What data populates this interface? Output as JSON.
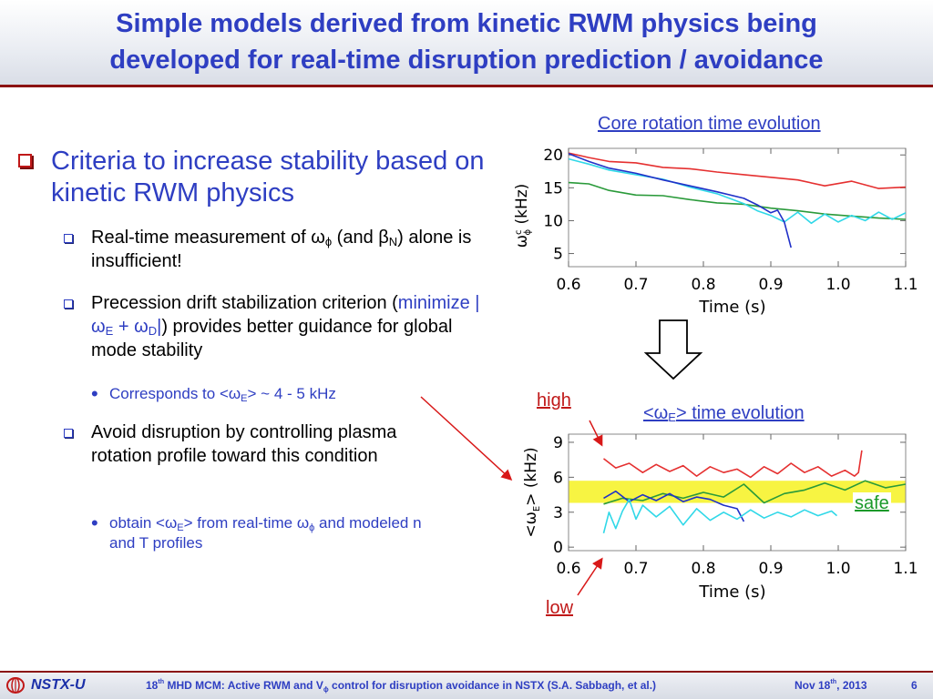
{
  "slide": {
    "title_line1": "Simple models derived from kinetic RWM physics being",
    "title_line2": "developed for real-time disruption prediction / avoidance",
    "page_number": "6"
  },
  "bullets": {
    "main": "Criteria to increase stability based on kinetic RWM physics",
    "sub1_a": "Real-time measurement of ",
    "omega": "ω",
    "phi": "ϕ",
    "sub1_b": " (and ",
    "beta": "β",
    "N": "N",
    "sub1_c": ") alone is insufficient!",
    "sub2_a": "Precession drift stabilization criterion (",
    "sub2_minimize": "minimize |ω",
    "E": "E",
    "plus_omega": " + ω",
    "D": "D",
    "bar": "|",
    "sub2_b": ") provides better guidance for global mode stability",
    "sub2_1_a": "Corresponds to <ω",
    "sub2_1_b": "> ~ 4 - 5 kHz",
    "sub3": "Avoid disruption by controlling plasma rotation profile toward this condition",
    "sub3_1_a": "obtain <ω",
    "sub3_1_b": "> from real-time ",
    "sub3_1_c": " and modeled n and T profiles"
  },
  "labels": {
    "core_caption": "Core rotation time evolution",
    "we_caption_a": "<ω",
    "we_caption_b": "> time evolution",
    "high": "high",
    "low": "low",
    "safe": "safe"
  },
  "footer": {
    "logo": "NSTX-U",
    "text_a": "18",
    "text_th": "th",
    "text_b": " MHD MCM: Active RWM and V",
    "text_c": " control for disruption avoidance in NSTX (S.A. Sabbagh, et al.)",
    "date_a": "Nov 18",
    "date_th": "th",
    "date_b": ", 2013"
  },
  "chart_data": [
    {
      "type": "line",
      "title": "Core rotation time evolution",
      "xlabel": "Time (s)",
      "ylabel": "ω",
      "ylabel_sup": "c",
      "ylabel_sub": "ϕ",
      "ylabel_unit": " (kHz)",
      "xlim": [
        0.6,
        1.1
      ],
      "ylim": [
        3,
        21
      ],
      "xticks": [
        "0.6",
        "0.7",
        "0.8",
        "0.9",
        "1.0",
        "1.1"
      ],
      "yticks": [
        "5",
        "10",
        "15",
        "20"
      ],
      "xtick_values": [
        0.6,
        0.7,
        0.8,
        0.9,
        1.0,
        1.1
      ],
      "ytick_values": [
        5,
        10,
        15,
        20
      ],
      "series": [
        {
          "color": "#e53030",
          "x": [
            0.6,
            0.63,
            0.66,
            0.7,
            0.74,
            0.78,
            0.82,
            0.86,
            0.9,
            0.94,
            0.98,
            1.02,
            1.06,
            1.1
          ],
          "y": [
            20.3,
            19.6,
            19.0,
            18.8,
            18.1,
            17.9,
            17.4,
            17.0,
            16.6,
            16.2,
            15.3,
            16.0,
            14.9,
            15.1
          ]
        },
        {
          "color": "#2a9a3a",
          "x": [
            0.6,
            0.63,
            0.66,
            0.7,
            0.74,
            0.78,
            0.82,
            0.86,
            0.9,
            0.94,
            0.98,
            1.02,
            1.06,
            1.1
          ],
          "y": [
            15.8,
            15.6,
            14.6,
            13.9,
            13.8,
            13.2,
            12.7,
            12.5,
            11.9,
            11.5,
            11.0,
            10.7,
            10.4,
            10.2
          ]
        },
        {
          "color": "#30d8e8",
          "x": [
            0.6,
            0.63,
            0.66,
            0.7,
            0.74,
            0.78,
            0.82,
            0.86,
            0.88,
            0.9,
            0.92,
            0.94,
            0.96,
            0.98,
            1.0,
            1.02,
            1.04,
            1.06,
            1.08,
            1.1
          ],
          "y": [
            19.4,
            18.6,
            17.7,
            17.0,
            16.3,
            15.1,
            14.1,
            12.6,
            11.5,
            10.8,
            9.8,
            11.3,
            9.6,
            11.0,
            9.8,
            10.8,
            10.0,
            11.3,
            10.2,
            11.2
          ]
        },
        {
          "color": "#2030c8",
          "x": [
            0.6,
            0.63,
            0.66,
            0.7,
            0.74,
            0.78,
            0.82,
            0.86,
            0.88,
            0.9,
            0.91,
            0.92,
            0.93
          ],
          "y": [
            20.2,
            19.0,
            18.0,
            17.2,
            16.2,
            15.3,
            14.4,
            13.4,
            12.4,
            11.2,
            11.6,
            9.8,
            5.9
          ]
        }
      ]
    },
    {
      "type": "line",
      "title": "<ωE> time evolution",
      "xlabel": "Time (s)",
      "ylabel_a": "<ω",
      "ylabel_sub": "E",
      "ylabel_b": "> (kHz)",
      "xlim": [
        0.6,
        1.1
      ],
      "ylim": [
        -0.3,
        9.7
      ],
      "xticks": [
        "0.6",
        "0.7",
        "0.8",
        "0.9",
        "1.0",
        "1.1"
      ],
      "yticks": [
        "0",
        "3",
        "6",
        "9"
      ],
      "xtick_values": [
        0.6,
        0.7,
        0.8,
        0.9,
        1.0,
        1.1
      ],
      "ytick_values": [
        0,
        3,
        6,
        9
      ],
      "safe_band": [
        3.8,
        5.7
      ],
      "safe_band_color": "#f7f442",
      "series": [
        {
          "color": "#e53030",
          "x": [
            0.652,
            0.67,
            0.69,
            0.71,
            0.73,
            0.75,
            0.77,
            0.79,
            0.81,
            0.83,
            0.85,
            0.87,
            0.89,
            0.91,
            0.93,
            0.95,
            0.97,
            0.99,
            1.01,
            1.024,
            1.03,
            1.035
          ],
          "y": [
            7.6,
            6.8,
            7.2,
            6.4,
            7.1,
            6.5,
            7.0,
            6.1,
            6.9,
            6.4,
            6.7,
            6.0,
            6.9,
            6.3,
            7.2,
            6.4,
            6.9,
            6.1,
            6.6,
            6.1,
            6.4,
            8.3
          ]
        },
        {
          "color": "#2a9a3a",
          "x": [
            0.652,
            0.68,
            0.71,
            0.74,
            0.77,
            0.8,
            0.83,
            0.86,
            0.89,
            0.92,
            0.95,
            0.98,
            1.01,
            1.04,
            1.07,
            1.1
          ],
          "y": [
            3.7,
            4.2,
            4.0,
            4.6,
            4.2,
            4.7,
            4.3,
            5.4,
            3.8,
            4.6,
            4.9,
            5.5,
            4.9,
            5.7,
            5.1,
            5.4
          ]
        },
        {
          "color": "#2030c8",
          "x": [
            0.652,
            0.67,
            0.69,
            0.71,
            0.73,
            0.75,
            0.77,
            0.79,
            0.81,
            0.83,
            0.85,
            0.86
          ],
          "y": [
            4.2,
            4.8,
            3.9,
            4.5,
            4.0,
            4.6,
            3.9,
            4.3,
            4.1,
            3.6,
            3.3,
            2.2
          ]
        },
        {
          "color": "#30d8e8",
          "x": [
            0.652,
            0.66,
            0.67,
            0.68,
            0.69,
            0.7,
            0.71,
            0.73,
            0.75,
            0.77,
            0.79,
            0.81,
            0.83,
            0.85,
            0.87,
            0.89,
            0.91,
            0.93,
            0.95,
            0.97,
            0.99,
            0.998
          ],
          "y": [
            1.2,
            3.0,
            1.6,
            3.1,
            4.1,
            2.4,
            3.6,
            2.6,
            3.5,
            1.9,
            3.3,
            2.3,
            3.0,
            2.4,
            3.2,
            2.5,
            3.0,
            2.6,
            3.2,
            2.7,
            3.1,
            2.7
          ]
        }
      ]
    }
  ]
}
